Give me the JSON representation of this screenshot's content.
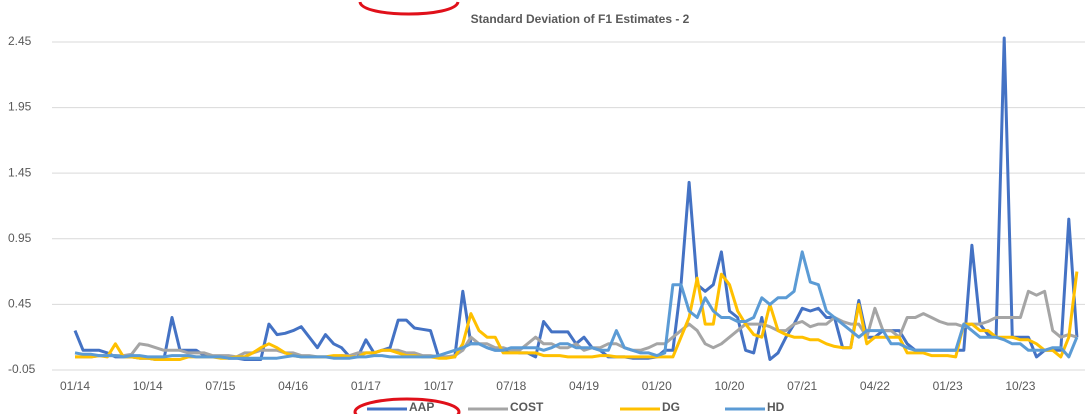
{
  "chart_data": {
    "type": "line",
    "title": "Standard Deviation of F1 Estimates - 2",
    "categories": [
      "01/14",
      null,
      null,
      null,
      null,
      null,
      null,
      null,
      null,
      "10/14",
      null,
      null,
      null,
      null,
      null,
      null,
      null,
      null,
      "07/15",
      null,
      null,
      null,
      null,
      null,
      null,
      null,
      null,
      "04/16",
      null,
      null,
      null,
      null,
      null,
      null,
      null,
      null,
      "01/17",
      null,
      null,
      null,
      null,
      null,
      null,
      null,
      null,
      "10/17",
      null,
      null,
      null,
      null,
      null,
      null,
      null,
      null,
      "07/18",
      null,
      null,
      null,
      null,
      null,
      null,
      null,
      null,
      "04/19",
      null,
      null,
      null,
      null,
      null,
      null,
      null,
      null,
      "01/20",
      null,
      null,
      null,
      null,
      null,
      null,
      null,
      null,
      "10/20",
      null,
      null,
      null,
      null,
      null,
      null,
      null,
      null,
      "07/21",
      null,
      null,
      null,
      null,
      null,
      null,
      null,
      null,
      "04/22",
      null,
      null,
      null,
      null,
      null,
      null,
      null,
      null,
      "01/23",
      null,
      null,
      null,
      null,
      null,
      null,
      null,
      null,
      "10/23",
      null,
      null,
      null,
      null,
      null,
      null,
      null
    ],
    "series": [
      {
        "name": "AAP",
        "color": "#4472c4",
        "values": [
          0.25,
          0.1,
          0.1,
          0.1,
          0.08,
          0.05,
          0.05,
          0.05,
          0.04,
          0.04,
          0.03,
          0.03,
          0.35,
          0.1,
          0.1,
          0.1,
          0.06,
          0.05,
          0.05,
          0.04,
          0.04,
          0.03,
          0.03,
          0.03,
          0.3,
          0.22,
          0.23,
          0.25,
          0.28,
          0.2,
          0.12,
          0.22,
          0.15,
          0.12,
          0.05,
          0.05,
          0.18,
          0.08,
          0.1,
          0.12,
          0.33,
          0.33,
          0.27,
          0.26,
          0.25,
          0.05,
          0.05,
          0.05,
          0.55,
          0.15,
          0.15,
          0.12,
          0.1,
          0.1,
          0.1,
          0.08,
          0.08,
          0.05,
          0.32,
          0.24,
          0.24,
          0.24,
          0.15,
          0.2,
          0.12,
          0.1,
          0.05,
          0.05,
          0.05,
          0.04,
          0.04,
          0.04,
          0.05,
          0.1,
          0.1,
          0.6,
          1.38,
          0.6,
          0.55,
          0.6,
          0.85,
          0.4,
          0.35,
          0.1,
          0.08,
          0.35,
          0.03,
          0.08,
          0.2,
          0.3,
          0.42,
          0.4,
          0.42,
          0.35,
          0.35,
          0.12,
          0.12,
          0.48,
          0.2,
          0.2,
          0.25,
          0.25,
          0.25,
          0.15,
          0.1,
          0.1,
          0.1,
          0.1,
          0.1,
          0.1,
          0.1,
          0.9,
          0.3,
          0.22,
          0.2,
          2.48,
          0.2,
          0.2,
          0.2,
          0.05,
          0.1,
          0.1,
          0.1,
          1.1,
          0.2
        ]
      },
      {
        "name": "COST",
        "color": "#a5a5a5",
        "values": [
          0.05,
          0.05,
          0.05,
          0.06,
          0.06,
          0.06,
          0.06,
          0.07,
          0.15,
          0.14,
          0.12,
          0.1,
          0.1,
          0.1,
          0.08,
          0.08,
          0.08,
          0.06,
          0.06,
          0.06,
          0.05,
          0.08,
          0.08,
          0.1,
          0.1,
          0.1,
          0.08,
          0.08,
          0.06,
          0.06,
          0.05,
          0.05,
          0.05,
          0.06,
          0.06,
          0.08,
          0.08,
          0.08,
          0.1,
          0.1,
          0.1,
          0.08,
          0.08,
          0.06,
          0.06,
          0.05,
          0.05,
          0.06,
          0.1,
          0.2,
          0.15,
          0.15,
          0.12,
          0.12,
          0.1,
          0.1,
          0.15,
          0.2,
          0.15,
          0.15,
          0.12,
          0.12,
          0.15,
          0.1,
          0.12,
          0.12,
          0.15,
          0.15,
          0.12,
          0.1,
          0.1,
          0.12,
          0.15,
          0.15,
          0.2,
          0.25,
          0.3,
          0.25,
          0.15,
          0.12,
          0.15,
          0.2,
          0.25,
          0.3,
          0.3,
          0.3,
          0.28,
          0.25,
          0.25,
          0.3,
          0.32,
          0.28,
          0.3,
          0.3,
          0.35,
          0.32,
          0.3,
          0.3,
          0.2,
          0.42,
          0.25,
          0.25,
          0.2,
          0.35,
          0.35,
          0.38,
          0.35,
          0.32,
          0.3,
          0.3,
          0.28,
          0.3,
          0.3,
          0.32,
          0.35,
          0.35,
          0.35,
          0.35,
          0.55,
          0.52,
          0.55,
          0.25,
          0.2,
          0.22,
          0.2
        ]
      },
      {
        "name": "DG",
        "color": "#ffc000",
        "values": [
          0.05,
          0.05,
          0.05,
          0.06,
          0.05,
          0.15,
          0.05,
          0.05,
          0.04,
          0.04,
          0.03,
          0.03,
          0.03,
          0.03,
          0.05,
          0.05,
          0.05,
          0.05,
          0.04,
          0.04,
          0.05,
          0.05,
          0.08,
          0.12,
          0.15,
          0.12,
          0.08,
          0.06,
          0.05,
          0.05,
          0.05,
          0.05,
          0.06,
          0.06,
          0.05,
          0.05,
          0.08,
          0.08,
          0.1,
          0.1,
          0.08,
          0.06,
          0.06,
          0.05,
          0.05,
          0.04,
          0.04,
          0.05,
          0.15,
          0.38,
          0.25,
          0.2,
          0.2,
          0.08,
          0.08,
          0.08,
          0.08,
          0.08,
          0.06,
          0.06,
          0.06,
          0.05,
          0.05,
          0.05,
          0.05,
          0.06,
          0.06,
          0.05,
          0.05,
          0.05,
          0.05,
          0.05,
          0.05,
          0.05,
          0.05,
          0.2,
          0.35,
          0.65,
          0.3,
          0.3,
          0.68,
          0.6,
          0.4,
          0.3,
          0.22,
          0.2,
          0.45,
          0.25,
          0.22,
          0.2,
          0.2,
          0.18,
          0.18,
          0.15,
          0.13,
          0.12,
          0.12,
          0.45,
          0.15,
          0.2,
          0.2,
          0.2,
          0.2,
          0.08,
          0.08,
          0.08,
          0.06,
          0.06,
          0.06,
          0.05,
          0.3,
          0.3,
          0.25,
          0.25,
          0.2,
          0.2,
          0.2,
          0.18,
          0.18,
          0.15,
          0.1,
          0.1,
          0.05,
          0.2,
          0.7
        ]
      },
      {
        "name": "HD",
        "color": "#5b9bd5",
        "values": [
          0.08,
          0.07,
          0.07,
          0.06,
          0.06,
          0.06,
          0.05,
          0.06,
          0.06,
          0.05,
          0.05,
          0.05,
          0.06,
          0.06,
          0.06,
          0.05,
          0.05,
          0.05,
          0.05,
          0.04,
          0.04,
          0.04,
          0.04,
          0.04,
          0.04,
          0.04,
          0.05,
          0.06,
          0.05,
          0.05,
          0.05,
          0.05,
          0.04,
          0.04,
          0.04,
          0.05,
          0.05,
          0.06,
          0.06,
          0.05,
          0.05,
          0.05,
          0.05,
          0.05,
          0.05,
          0.06,
          0.08,
          0.1,
          0.12,
          0.15,
          0.15,
          0.12,
          0.1,
          0.1,
          0.12,
          0.12,
          0.12,
          0.12,
          0.1,
          0.12,
          0.15,
          0.15,
          0.12,
          0.12,
          0.12,
          0.1,
          0.1,
          0.25,
          0.12,
          0.1,
          0.08,
          0.08,
          0.06,
          0.08,
          0.6,
          0.6,
          0.4,
          0.35,
          0.5,
          0.4,
          0.35,
          0.35,
          0.32,
          0.32,
          0.35,
          0.5,
          0.45,
          0.5,
          0.5,
          0.55,
          0.85,
          0.62,
          0.6,
          0.4,
          0.35,
          0.3,
          0.25,
          0.2,
          0.25,
          0.25,
          0.25,
          0.15,
          0.15,
          0.12,
          0.1,
          0.1,
          0.1,
          0.1,
          0.1,
          0.1,
          0.3,
          0.25,
          0.2,
          0.2,
          0.2,
          0.18,
          0.15,
          0.15,
          0.1,
          0.1,
          0.1,
          0.12,
          0.12,
          0.05,
          0.2
        ]
      }
    ],
    "ylim": [
      -0.05,
      2.5
    ],
    "yticks": [
      -0.05,
      0.45,
      0.95,
      1.45,
      1.95,
      2.45
    ],
    "grid": true,
    "legend": "bottom"
  }
}
